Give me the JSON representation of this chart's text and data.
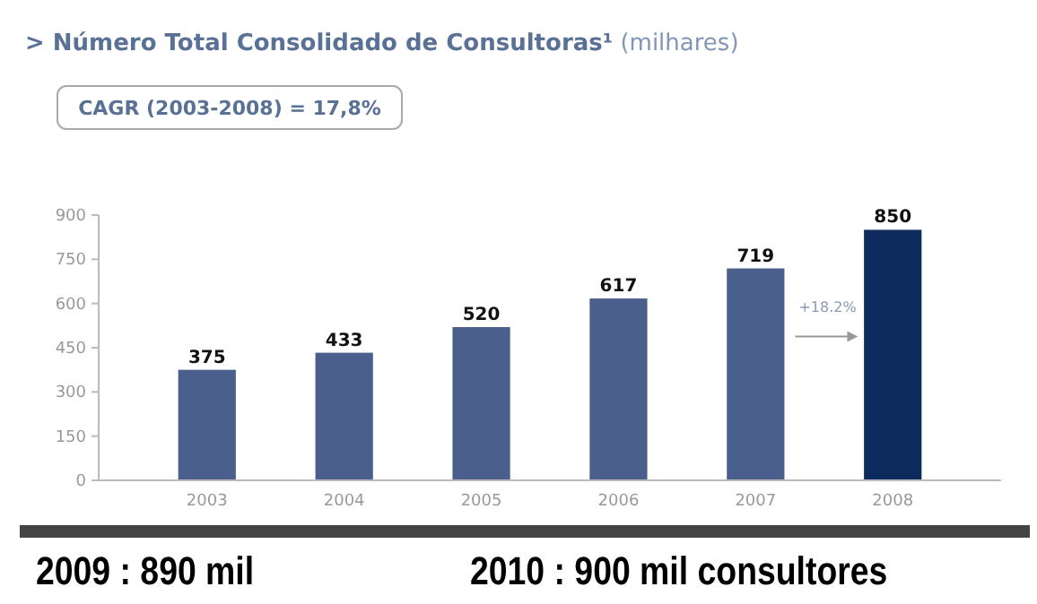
{
  "chart_data": {
    "type": "bar",
    "title": "> Número Total Consolidado de Consultoras¹",
    "subtitle": "(milhares)",
    "categories": [
      "2003",
      "2004",
      "2005",
      "2006",
      "2007",
      "2008"
    ],
    "values": [
      375,
      433,
      520,
      617,
      719,
      850
    ],
    "colors": [
      "#4a5f8c",
      "#4a5f8c",
      "#4a5f8c",
      "#4a5f8c",
      "#4a5f8c",
      "#0d2b5c"
    ],
    "ylim": [
      0,
      900
    ],
    "yticks": [
      0,
      150,
      300,
      450,
      600,
      750,
      900
    ],
    "grid": false,
    "data_labels": true,
    "annotations": [
      "CAGR (2003-2008) = 17,8%",
      "+18.2%",
      "2009 :  890 mil",
      "2010 : 900 mil consultores"
    ]
  }
}
